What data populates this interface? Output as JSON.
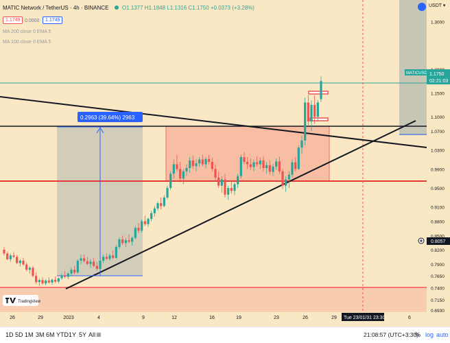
{
  "header": {
    "symbol_title": "MATIC Network / TetherUS · 4h · BINANCE",
    "ohlc": "O1.1377 H1.1848 L1.1316 C1.1750 +0.0373 (+3.28%)",
    "bid": "1.1749",
    "spread": "0.0000",
    "ask": "1.1749",
    "indicator_1": "MA 200 close 0 EMA 5",
    "indicator_2": "MA 100 close 0 EMA 5"
  },
  "price_scale": {
    "currency": "USDT",
    "labels": [
      "1.3000",
      "1.2000",
      "1.1500",
      "1.1000",
      "1.0700",
      "1.0300",
      "0.9900",
      "0.9500",
      "0.9100",
      "0.8800",
      "0.8500",
      "0.8200",
      "0.7900",
      "0.7650",
      "0.7400",
      "0.7150",
      "0.6930"
    ],
    "symbol_tag": "MATICUSDT",
    "last_price": "1.1750",
    "countdown": "02:21:03",
    "marker_price": "0.8057"
  },
  "time_scale": {
    "labels": [
      "26",
      "29",
      "2023",
      "4",
      "9",
      "12",
      "16",
      "19",
      "23",
      "26",
      "29",
      "6"
    ],
    "cursor_label": "Tue 23/01/31   23:30"
  },
  "measure_label": "0.2963 (39.64%) 2963",
  "watermark": "TradingView",
  "toolbar": {
    "ranges": [
      "1D",
      "5D",
      "1M",
      "3M",
      "6M",
      "YTD",
      "1Y",
      "5Y",
      "All"
    ],
    "clock": "21:08:57 (UTC+3:30)",
    "percent": "%",
    "log": "log",
    "auto": "auto"
  },
  "colors": {
    "background": "#fae8c4",
    "up": "#26a69a",
    "down": "#ef5350",
    "measure": "#2962ff",
    "rect_fill": "#f7b79e",
    "rect_border": "#ef5350",
    "gray_zone": "#b7bbb0"
  },
  "chart_data": {
    "type": "candlestick",
    "interval": "4h",
    "ylim": [
      0.693,
      1.34
    ],
    "candles_ohlc": [
      [
        0.82,
        0.826,
        0.808,
        0.812
      ],
      [
        0.812,
        0.816,
        0.798,
        0.8
      ],
      [
        0.8,
        0.812,
        0.795,
        0.808
      ],
      [
        0.808,
        0.815,
        0.802,
        0.805
      ],
      [
        0.805,
        0.809,
        0.79,
        0.792
      ],
      [
        0.792,
        0.8,
        0.785,
        0.797
      ],
      [
        0.797,
        0.803,
        0.786,
        0.789
      ],
      [
        0.789,
        0.793,
        0.775,
        0.778
      ],
      [
        0.778,
        0.785,
        0.77,
        0.782
      ],
      [
        0.782,
        0.786,
        0.762,
        0.765
      ],
      [
        0.765,
        0.772,
        0.748,
        0.752
      ],
      [
        0.752,
        0.76,
        0.744,
        0.756
      ],
      [
        0.756,
        0.762,
        0.746,
        0.749
      ],
      [
        0.749,
        0.758,
        0.745,
        0.755
      ],
      [
        0.755,
        0.762,
        0.749,
        0.751
      ],
      [
        0.751,
        0.759,
        0.746,
        0.757
      ],
      [
        0.757,
        0.764,
        0.75,
        0.753
      ],
      [
        0.753,
        0.762,
        0.749,
        0.76
      ],
      [
        0.76,
        0.77,
        0.756,
        0.766
      ],
      [
        0.766,
        0.775,
        0.76,
        0.763
      ],
      [
        0.763,
        0.772,
        0.758,
        0.77
      ],
      [
        0.77,
        0.782,
        0.765,
        0.778
      ],
      [
        0.778,
        0.786,
        0.768,
        0.772
      ],
      [
        0.772,
        0.8,
        0.77,
        0.797
      ],
      [
        0.797,
        0.81,
        0.79,
        0.802
      ],
      [
        0.802,
        0.81,
        0.793,
        0.796
      ],
      [
        0.796,
        0.805,
        0.788,
        0.79
      ],
      [
        0.79,
        0.8,
        0.782,
        0.795
      ],
      [
        0.795,
        0.803,
        0.783,
        0.786
      ],
      [
        0.786,
        0.794,
        0.776,
        0.78
      ],
      [
        0.78,
        0.8,
        0.778,
        0.797
      ],
      [
        0.797,
        0.81,
        0.792,
        0.805
      ],
      [
        0.805,
        0.812,
        0.798,
        0.801
      ],
      [
        0.801,
        0.812,
        0.797,
        0.808
      ],
      [
        0.808,
        0.818,
        0.8,
        0.803
      ],
      [
        0.803,
        0.83,
        0.801,
        0.826
      ],
      [
        0.826,
        0.846,
        0.822,
        0.842
      ],
      [
        0.842,
        0.85,
        0.83,
        0.834
      ],
      [
        0.834,
        0.845,
        0.826,
        0.84
      ],
      [
        0.84,
        0.852,
        0.834,
        0.837
      ],
      [
        0.837,
        0.848,
        0.829,
        0.845
      ],
      [
        0.845,
        0.87,
        0.842,
        0.866
      ],
      [
        0.866,
        0.876,
        0.855,
        0.86
      ],
      [
        0.86,
        0.884,
        0.856,
        0.88
      ],
      [
        0.88,
        0.892,
        0.87,
        0.874
      ],
      [
        0.874,
        0.888,
        0.868,
        0.885
      ],
      [
        0.885,
        0.902,
        0.88,
        0.897
      ],
      [
        0.897,
        0.912,
        0.89,
        0.907
      ],
      [
        0.907,
        0.922,
        0.902,
        0.918
      ],
      [
        0.918,
        0.93,
        0.905,
        0.912
      ],
      [
        0.912,
        0.935,
        0.91,
        0.93
      ],
      [
        0.93,
        0.955,
        0.926,
        0.95
      ],
      [
        0.95,
        0.985,
        0.946,
        0.98
      ],
      [
        0.98,
        1.01,
        0.97,
        1.0
      ],
      [
        1.0,
        1.02,
        0.985,
        0.99
      ],
      [
        0.99,
        1.005,
        0.962,
        0.97
      ],
      [
        0.97,
        0.99,
        0.958,
        0.985
      ],
      [
        0.985,
        1.0,
        0.975,
        0.992
      ],
      [
        0.992,
        1.015,
        0.982,
        1.008
      ],
      [
        1.008,
        1.018,
        0.99,
        0.996
      ],
      [
        0.996,
        1.01,
        0.985,
        1.002
      ],
      [
        1.002,
        1.015,
        0.995,
        1.01
      ],
      [
        1.01,
        1.02,
        0.996,
        1.0
      ],
      [
        1.0,
        1.015,
        0.992,
        1.011
      ],
      [
        1.011,
        1.02,
        1.0,
        1.005
      ],
      [
        1.005,
        1.014,
        0.985,
        0.99
      ],
      [
        0.99,
        1.0,
        0.965,
        0.972
      ],
      [
        0.972,
        0.985,
        0.95,
        0.955
      ],
      [
        0.955,
        0.975,
        0.94,
        0.968
      ],
      [
        0.968,
        0.98,
        0.93,
        0.936
      ],
      [
        0.936,
        0.955,
        0.925,
        0.95
      ],
      [
        0.95,
        0.965,
        0.938,
        0.944
      ],
      [
        0.944,
        0.962,
        0.935,
        0.958
      ],
      [
        0.958,
        0.98,
        0.95,
        0.975
      ],
      [
        0.975,
        1.02,
        0.97,
        1.015
      ],
      [
        1.015,
        1.025,
        1.0,
        1.005
      ],
      [
        1.005,
        1.015,
        0.99,
        1.0
      ],
      [
        1.0,
        1.012,
        0.988,
        0.994
      ],
      [
        0.994,
        1.01,
        0.985,
        1.004
      ],
      [
        1.004,
        1.016,
        0.995,
        1.0
      ],
      [
        1.0,
        1.014,
        0.99,
        1.008
      ],
      [
        1.008,
        1.016,
        0.985,
        0.992
      ],
      [
        0.992,
        1.005,
        0.98,
        0.998
      ],
      [
        0.998,
        1.008,
        0.978,
        0.984
      ],
      [
        0.984,
        1.0,
        0.975,
        0.995
      ],
      [
        0.995,
        1.012,
        0.988,
        1.006
      ],
      [
        1.006,
        1.016,
        0.98,
        0.985
      ],
      [
        0.985,
        0.99,
        0.948,
        0.955
      ],
      [
        0.955,
        0.975,
        0.942,
        0.968
      ],
      [
        0.968,
        0.985,
        0.95,
        0.978
      ],
      [
        0.978,
        1.01,
        0.972,
        1.004
      ],
      [
        1.004,
        1.015,
        0.985,
        0.99
      ],
      [
        0.99,
        1.04,
        0.988,
        1.035
      ],
      [
        1.035,
        1.06,
        1.022,
        1.05
      ],
      [
        1.05,
        1.14,
        1.04,
        1.13
      ],
      [
        1.13,
        1.145,
        1.08,
        1.09
      ],
      [
        1.09,
        1.135,
        1.07,
        1.125
      ],
      [
        1.125,
        1.145,
        1.085,
        1.1
      ],
      [
        1.1,
        1.135,
        1.09,
        1.13
      ],
      [
        1.137,
        1.185,
        1.131,
        1.175
      ]
    ]
  }
}
